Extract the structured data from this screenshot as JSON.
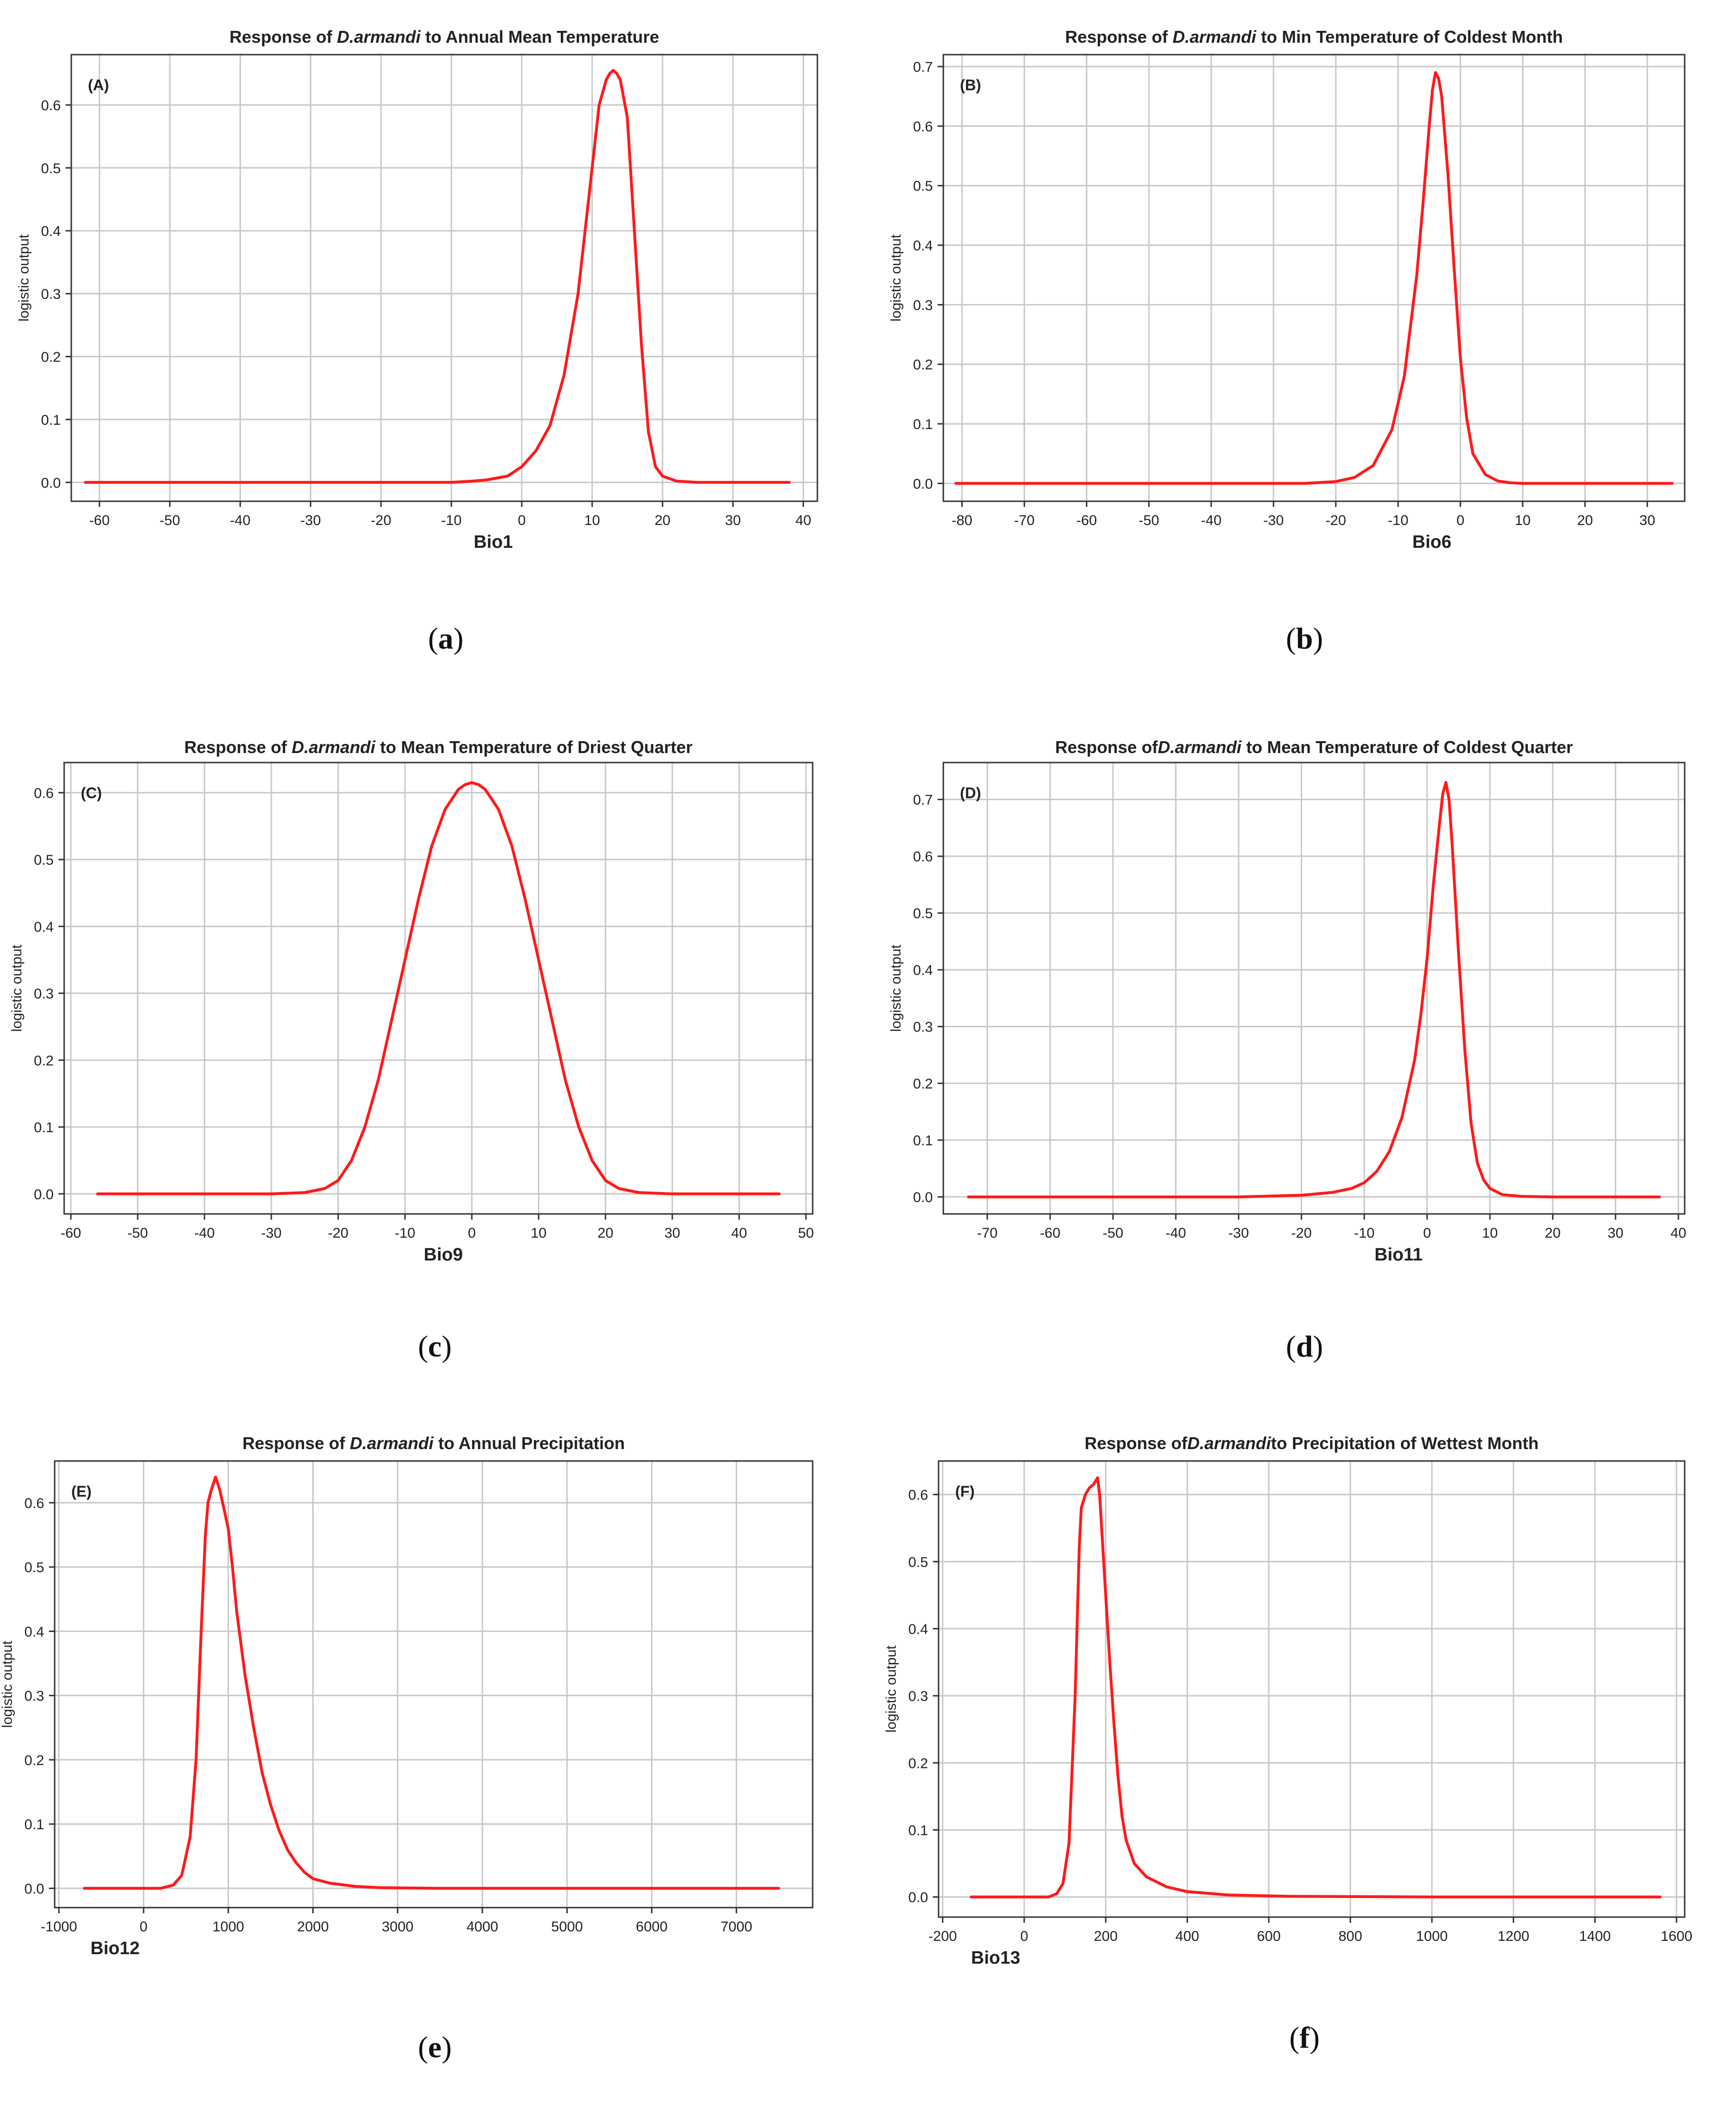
{
  "chart_data": [
    {
      "type": "line",
      "panel": "(A)",
      "caption": "a",
      "title_prefix": "Response of ",
      "species": "D.armandi",
      "title_suffix": " to Annual Mean Temperature",
      "xlabel": "Bio1",
      "ylabel": "logistic output",
      "xlim": [
        -64,
        42
      ],
      "ylim": [
        -0.03,
        0.68
      ],
      "xticks": [
        -60,
        -50,
        -40,
        -30,
        -20,
        -10,
        0,
        10,
        20,
        30,
        40
      ],
      "yticks": [
        0.0,
        0.1,
        0.2,
        0.3,
        0.4,
        0.5,
        0.6
      ],
      "ytick_labels": [
        "0.0",
        "0.1",
        "0.2",
        "0.3",
        "0.4",
        "0.5",
        "0.6"
      ],
      "grid": true,
      "series": [
        {
          "name": "response",
          "color": "#ff1a1a",
          "x": [
            -62,
            -30,
            -10,
            -7,
            -5,
            -2,
            0,
            2,
            4,
            6,
            8,
            9,
            10,
            11,
            11.5,
            12,
            12.5,
            13,
            13.5,
            14,
            15,
            16,
            17,
            18,
            19,
            20,
            22,
            25,
            30,
            38
          ],
          "y": [
            0.0,
            0.0,
            0.0,
            0.002,
            0.004,
            0.01,
            0.025,
            0.05,
            0.09,
            0.17,
            0.3,
            0.4,
            0.5,
            0.6,
            0.62,
            0.64,
            0.65,
            0.655,
            0.65,
            0.64,
            0.58,
            0.4,
            0.22,
            0.08,
            0.025,
            0.01,
            0.002,
            0.0,
            0.0,
            0.0
          ]
        }
      ]
    },
    {
      "type": "line",
      "panel": "(B)",
      "caption": "b",
      "title_prefix": "Response of ",
      "species": "D.armandi",
      "title_suffix": "  to Min Temperature of Coldest Month",
      "xlabel": "Bio6",
      "ylabel": "logistic output",
      "xlim": [
        -83,
        36
      ],
      "ylim": [
        -0.03,
        0.72
      ],
      "xticks": [
        -80,
        -70,
        -60,
        -50,
        -40,
        -30,
        -20,
        -10,
        0,
        10,
        20,
        30
      ],
      "yticks": [
        0.0,
        0.1,
        0.2,
        0.3,
        0.4,
        0.5,
        0.6,
        0.7
      ],
      "ytick_labels": [
        "0.0",
        "0.1",
        "0.2",
        "0.3",
        "0.4",
        "0.5",
        "0.6",
        "0.7"
      ],
      "grid": true,
      "series": [
        {
          "name": "response",
          "color": "#ff1a1a",
          "x": [
            -81,
            -40,
            -25,
            -20,
            -17,
            -14,
            -11,
            -9,
            -7,
            -6,
            -5,
            -4.5,
            -4,
            -3.5,
            -3,
            -2,
            -1,
            0,
            1,
            2,
            4,
            6,
            8,
            10,
            15,
            34
          ],
          "y": [
            0.0,
            0.0,
            0.0,
            0.003,
            0.01,
            0.03,
            0.09,
            0.18,
            0.35,
            0.47,
            0.6,
            0.66,
            0.69,
            0.68,
            0.65,
            0.52,
            0.36,
            0.21,
            0.11,
            0.05,
            0.015,
            0.004,
            0.001,
            0.0,
            0.0,
            0.0
          ]
        }
      ]
    },
    {
      "type": "line",
      "panel": "(C)",
      "caption": "c",
      "title_prefix": "Response of ",
      "species": "D.armandi",
      "title_suffix": " to Mean Temperature of Driest Quarter",
      "xlabel": "Bio9",
      "ylabel": "logistic output",
      "xlim": [
        -61,
        51
      ],
      "ylim": [
        -0.03,
        0.645
      ],
      "xticks": [
        -60,
        -50,
        -40,
        -30,
        -20,
        -10,
        0,
        10,
        20,
        30,
        40,
        50
      ],
      "yticks": [
        0.0,
        0.1,
        0.2,
        0.3,
        0.4,
        0.5,
        0.6
      ],
      "ytick_labels": [
        "0.0",
        "0.1",
        "0.2",
        "0.3",
        "0.4",
        "0.5",
        "0.6"
      ],
      "grid": true,
      "series": [
        {
          "name": "response",
          "color": "#ff1a1a",
          "x": [
            -56,
            -30,
            -25,
            -22,
            -20,
            -18,
            -16,
            -14,
            -12,
            -10,
            -8,
            -6,
            -4,
            -2,
            -1,
            0,
            1,
            2,
            4,
            6,
            8,
            10,
            12,
            14,
            16,
            18,
            20,
            22,
            25,
            30,
            46
          ],
          "y": [
            0.0,
            0.0,
            0.002,
            0.008,
            0.02,
            0.05,
            0.1,
            0.17,
            0.26,
            0.35,
            0.44,
            0.52,
            0.575,
            0.605,
            0.612,
            0.615,
            0.612,
            0.605,
            0.575,
            0.52,
            0.44,
            0.35,
            0.26,
            0.17,
            0.1,
            0.05,
            0.02,
            0.008,
            0.002,
            0.0,
            0.0
          ]
        }
      ]
    },
    {
      "type": "line",
      "panel": "(D)",
      "caption": "d",
      "title_prefix": "Response of",
      "species": "D.armandi",
      "title_suffix": " to Mean Temperature of Coldest Quarter",
      "xlabel": "Bio11",
      "ylabel": "logistic output",
      "xlim": [
        -77,
        41
      ],
      "ylim": [
        -0.03,
        0.765
      ],
      "xticks": [
        -70,
        -60,
        -50,
        -40,
        -30,
        -20,
        -10,
        0,
        10,
        20,
        30,
        40
      ],
      "yticks": [
        0.0,
        0.1,
        0.2,
        0.3,
        0.4,
        0.5,
        0.6,
        0.7
      ],
      "ytick_labels": [
        "0.0",
        "0.1",
        "0.2",
        "0.3",
        "0.4",
        "0.5",
        "0.6",
        "0.7"
      ],
      "grid": true,
      "series": [
        {
          "name": "response",
          "color": "#ff1a1a",
          "x": [
            -73,
            -30,
            -20,
            -15,
            -12,
            -10,
            -8,
            -6,
            -4,
            -2,
            -1,
            0,
            1,
            2,
            2.5,
            3,
            3.5,
            4,
            5,
            6,
            7,
            8,
            9,
            10,
            12,
            15,
            20,
            37
          ],
          "y": [
            0.0,
            0.0,
            0.003,
            0.008,
            0.015,
            0.025,
            0.045,
            0.08,
            0.14,
            0.24,
            0.32,
            0.42,
            0.55,
            0.66,
            0.71,
            0.73,
            0.7,
            0.62,
            0.43,
            0.26,
            0.13,
            0.06,
            0.03,
            0.015,
            0.004,
            0.001,
            0.0,
            0.0
          ]
        }
      ]
    },
    {
      "type": "line",
      "panel": "(E)",
      "caption": "e",
      "title_prefix": "Response of ",
      "species": "D.armandi",
      "title_suffix": " to Annual Precipitation",
      "xlabel": "Bio12",
      "ylabel": "logistic output",
      "xlim": [
        -1050,
        7900
      ],
      "ylim": [
        -0.03,
        0.665
      ],
      "xticks": [
        -1000,
        0,
        1000,
        2000,
        3000,
        4000,
        5000,
        6000,
        7000
      ],
      "yticks": [
        0.0,
        0.1,
        0.2,
        0.3,
        0.4,
        0.5,
        0.6
      ],
      "ytick_labels": [
        "0.0",
        "0.1",
        "0.2",
        "0.3",
        "0.4",
        "0.5",
        "0.6"
      ],
      "grid": true,
      "series": [
        {
          "name": "response",
          "color": "#ff1a1a",
          "x": [
            -700,
            200,
            350,
            450,
            550,
            620,
            680,
            730,
            760,
            800,
            850,
            900,
            950,
            1000,
            1050,
            1100,
            1200,
            1300,
            1400,
            1500,
            1600,
            1700,
            1800,
            1900,
            2000,
            2200,
            2500,
            2800,
            3500,
            7500
          ],
          "y": [
            0.0,
            0.0,
            0.005,
            0.02,
            0.08,
            0.2,
            0.4,
            0.55,
            0.6,
            0.62,
            0.64,
            0.62,
            0.59,
            0.56,
            0.5,
            0.43,
            0.33,
            0.25,
            0.18,
            0.13,
            0.09,
            0.06,
            0.04,
            0.025,
            0.015,
            0.008,
            0.003,
            0.001,
            0.0,
            0.0
          ]
        }
      ]
    },
    {
      "type": "line",
      "panel": "(F)",
      "caption": "f",
      "title_prefix": "Response of",
      "species": "D.armandi",
      "title_suffix": "to Precipitation of Wettest Month",
      "xlabel": "Bio13",
      "ylabel": "logistic output",
      "xlim": [
        -210,
        1620
      ],
      "ylim": [
        -0.03,
        0.65
      ],
      "xticks": [
        -200,
        0,
        200,
        400,
        600,
        800,
        1000,
        1200,
        1400,
        1600
      ],
      "yticks": [
        0.0,
        0.1,
        0.2,
        0.3,
        0.4,
        0.5,
        0.6
      ],
      "ytick_labels": [
        "0.0",
        "0.1",
        "0.2",
        "0.3",
        "0.4",
        "0.5",
        "0.6"
      ],
      "grid": true,
      "series": [
        {
          "name": "response",
          "color": "#ff1a1a",
          "x": [
            -130,
            60,
            80,
            95,
            110,
            125,
            135,
            140,
            150,
            160,
            170,
            180,
            185,
            190,
            200,
            210,
            220,
            230,
            240,
            250,
            270,
            300,
            350,
            400,
            500,
            650,
            1000,
            1560
          ],
          "y": [
            0.0,
            0.0,
            0.005,
            0.02,
            0.08,
            0.3,
            0.52,
            0.58,
            0.6,
            0.61,
            0.615,
            0.625,
            0.6,
            0.55,
            0.45,
            0.35,
            0.26,
            0.18,
            0.12,
            0.085,
            0.05,
            0.03,
            0.015,
            0.008,
            0.003,
            0.001,
            0.0,
            0.0
          ]
        }
      ]
    }
  ]
}
